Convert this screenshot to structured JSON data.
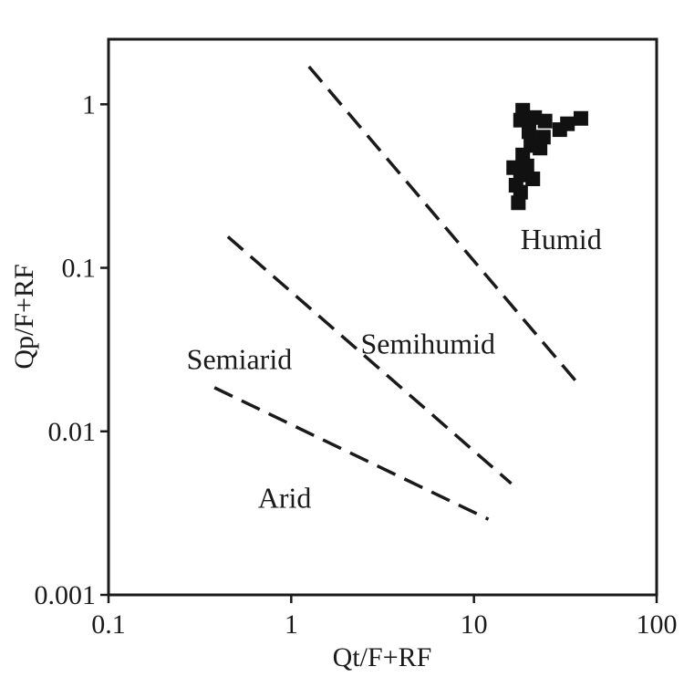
{
  "chart_data": {
    "type": "scatter",
    "xlabel": "Qt/F+RF",
    "ylabel": "Qp/F+RF",
    "xscale": "log",
    "yscale": "log",
    "xlim": [
      0.1,
      100
    ],
    "ylim": [
      0.001,
      2.5
    ],
    "x_ticks": [
      {
        "value": 0.1,
        "label": "0.1"
      },
      {
        "value": 1,
        "label": "1"
      },
      {
        "value": 10,
        "label": "10"
      },
      {
        "value": 100,
        "label": "100"
      }
    ],
    "y_ticks": [
      {
        "value": 0.001,
        "label": "0.001"
      },
      {
        "value": 0.01,
        "label": "0.01"
      },
      {
        "value": 0.1,
        "label": "0.1"
      },
      {
        "value": 1,
        "label": "1"
      }
    ],
    "grid": false,
    "legend": "none",
    "points": [
      {
        "x": 18.5,
        "y": 0.92
      },
      {
        "x": 18.0,
        "y": 0.8
      },
      {
        "x": 21.5,
        "y": 0.83
      },
      {
        "x": 24.5,
        "y": 0.79
      },
      {
        "x": 29.5,
        "y": 0.7
      },
      {
        "x": 32.5,
        "y": 0.76
      },
      {
        "x": 38.5,
        "y": 0.82
      },
      {
        "x": 20.0,
        "y": 0.68
      },
      {
        "x": 24.0,
        "y": 0.63
      },
      {
        "x": 23.0,
        "y": 0.54
      },
      {
        "x": 20.5,
        "y": 0.56
      },
      {
        "x": 18.5,
        "y": 0.49
      },
      {
        "x": 19.5,
        "y": 0.42
      },
      {
        "x": 16.5,
        "y": 0.41
      },
      {
        "x": 18.0,
        "y": 0.37
      },
      {
        "x": 21.0,
        "y": 0.35
      },
      {
        "x": 17.0,
        "y": 0.32
      },
      {
        "x": 18.0,
        "y": 0.29
      },
      {
        "x": 17.5,
        "y": 0.25
      }
    ],
    "boundaries": [
      {
        "from": [
          1.25,
          1.7
        ],
        "to": [
          38,
          0.019
        ]
      },
      {
        "from": [
          0.45,
          0.155
        ],
        "to": [
          16,
          0.0048
        ]
      },
      {
        "from": [
          0.38,
          0.0185
        ],
        "to": [
          12,
          0.0029
        ]
      }
    ],
    "regions": [
      {
        "label": "Humid",
        "x": 30,
        "y": 0.13
      },
      {
        "label": "Semihumid",
        "x": 5.6,
        "y": 0.03
      },
      {
        "label": "Semiarid",
        "x": 0.52,
        "y": 0.024
      },
      {
        "label": "Arid",
        "x": 0.92,
        "y": 0.0034
      }
    ]
  }
}
